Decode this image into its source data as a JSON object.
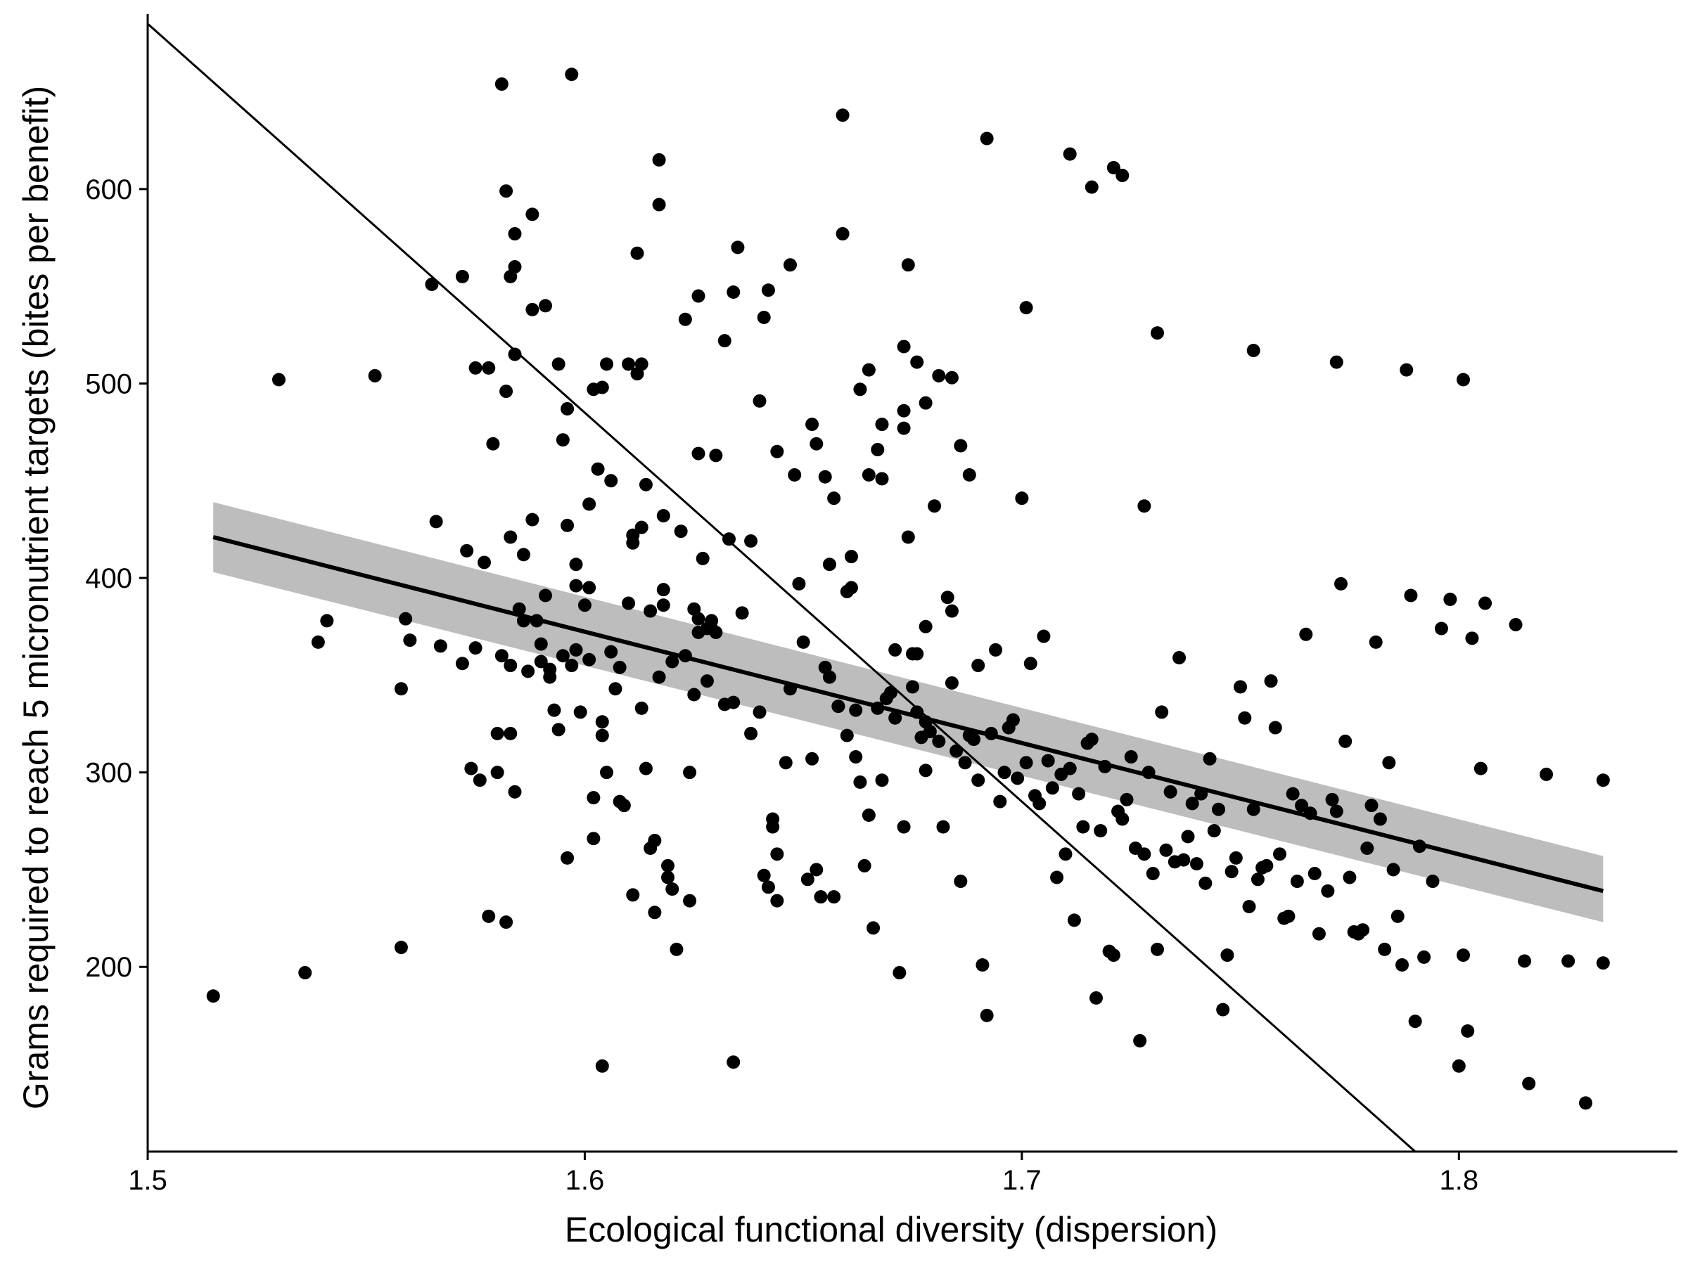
{
  "chart_data": {
    "type": "scatter",
    "title": "",
    "xlabel": "Ecological functional diversity (dispersion)",
    "ylabel": "Grams required to reach 5 micronutrient targets (bites per benefit)",
    "xlim": [
      1.5,
      1.85
    ],
    "ylim": [
      105,
      690
    ],
    "x_ticks": [
      1.5,
      1.6,
      1.7,
      1.8
    ],
    "y_ticks": [
      200,
      300,
      400,
      500,
      600
    ],
    "x_tick_labels": [
      "1.5",
      "1.6",
      "1.7",
      "1.8"
    ],
    "y_tick_labels": [
      "200",
      "300",
      "400",
      "500",
      "600"
    ],
    "grid": false,
    "legend": "none",
    "colors": {
      "points": "#000000",
      "fit_line": "#000000",
      "confidence_band": "#bdbdbd",
      "reference_line": "#000000",
      "axis": "#000000"
    },
    "regression": {
      "x": [
        1.515,
        1.833
      ],
      "y": [
        421,
        239
      ],
      "ci_lower": [
        403,
        223
      ],
      "ci_upper": [
        439,
        257
      ]
    },
    "reference_line": {
      "x": [
        1.5,
        1.79
      ],
      "y": [
        685,
        105
      ]
    },
    "points": [
      [
        1.515,
        185
      ],
      [
        1.53,
        502
      ],
      [
        1.536,
        197
      ],
      [
        1.539,
        367
      ],
      [
        1.541,
        378
      ],
      [
        1.552,
        504
      ],
      [
        1.558,
        343
      ],
      [
        1.558,
        210
      ],
      [
        1.559,
        379
      ],
      [
        1.56,
        368
      ],
      [
        1.565,
        551
      ],
      [
        1.566,
        429
      ],
      [
        1.567,
        365
      ],
      [
        1.572,
        356
      ],
      [
        1.572,
        555
      ],
      [
        1.573,
        414
      ],
      [
        1.574,
        302
      ],
      [
        1.575,
        364
      ],
      [
        1.575,
        508
      ],
      [
        1.576,
        296
      ],
      [
        1.577,
        408
      ],
      [
        1.578,
        226
      ],
      [
        1.578,
        508
      ],
      [
        1.579,
        469
      ],
      [
        1.58,
        300
      ],
      [
        1.58,
        320
      ],
      [
        1.581,
        654
      ],
      [
        1.581,
        360
      ],
      [
        1.582,
        599
      ],
      [
        1.582,
        223
      ],
      [
        1.582,
        496
      ],
      [
        1.583,
        355
      ],
      [
        1.583,
        555
      ],
      [
        1.583,
        421
      ],
      [
        1.583,
        320
      ],
      [
        1.584,
        290
      ],
      [
        1.584,
        560
      ],
      [
        1.584,
        515
      ],
      [
        1.584,
        577
      ],
      [
        1.585,
        384
      ],
      [
        1.586,
        378
      ],
      [
        1.586,
        412
      ],
      [
        1.587,
        352
      ],
      [
        1.588,
        587
      ],
      [
        1.588,
        430
      ],
      [
        1.588,
        538
      ],
      [
        1.589,
        378
      ],
      [
        1.59,
        366
      ],
      [
        1.59,
        357
      ],
      [
        1.591,
        540
      ],
      [
        1.591,
        391
      ],
      [
        1.592,
        353
      ],
      [
        1.592,
        349
      ],
      [
        1.593,
        332
      ],
      [
        1.594,
        510
      ],
      [
        1.594,
        322
      ],
      [
        1.595,
        471
      ],
      [
        1.595,
        360
      ],
      [
        1.596,
        427
      ],
      [
        1.596,
        256
      ],
      [
        1.597,
        659
      ],
      [
        1.597,
        355
      ],
      [
        1.598,
        396
      ],
      [
        1.598,
        407
      ],
      [
        1.598,
        363
      ],
      [
        1.599,
        331
      ],
      [
        1.6,
        386
      ],
      [
        1.601,
        438
      ],
      [
        1.601,
        395
      ],
      [
        1.601,
        358
      ],
      [
        1.602,
        266
      ],
      [
        1.602,
        287
      ],
      [
        1.602,
        497
      ],
      [
        1.603,
        456
      ],
      [
        1.604,
        326
      ],
      [
        1.604,
        149
      ],
      [
        1.604,
        319
      ],
      [
        1.605,
        510
      ],
      [
        1.605,
        300
      ],
      [
        1.606,
        362
      ],
      [
        1.607,
        343
      ],
      [
        1.608,
        354
      ],
      [
        1.608,
        285
      ],
      [
        1.609,
        283
      ],
      [
        1.61,
        510
      ],
      [
        1.61,
        387
      ],
      [
        1.611,
        422
      ],
      [
        1.611,
        418
      ],
      [
        1.611,
        237
      ],
      [
        1.612,
        567
      ],
      [
        1.613,
        426
      ],
      [
        1.613,
        333
      ],
      [
        1.613,
        510
      ],
      [
        1.614,
        302
      ],
      [
        1.615,
        261
      ],
      [
        1.615,
        383
      ],
      [
        1.616,
        228
      ],
      [
        1.616,
        265
      ],
      [
        1.617,
        349
      ],
      [
        1.618,
        394
      ],
      [
        1.618,
        432
      ],
      [
        1.618,
        386
      ],
      [
        1.619,
        246
      ],
      [
        1.619,
        252
      ],
      [
        1.62,
        240
      ],
      [
        1.62,
        357
      ],
      [
        1.621,
        209
      ],
      [
        1.622,
        424
      ],
      [
        1.623,
        360
      ],
      [
        1.624,
        300
      ],
      [
        1.624,
        234
      ],
      [
        1.625,
        340
      ],
      [
        1.625,
        384
      ],
      [
        1.626,
        372
      ],
      [
        1.626,
        379
      ],
      [
        1.627,
        410
      ],
      [
        1.628,
        347
      ],
      [
        1.628,
        374
      ],
      [
        1.629,
        374
      ],
      [
        1.629,
        378
      ],
      [
        1.63,
        372
      ],
      [
        1.632,
        335
      ],
      [
        1.634,
        336
      ],
      [
        1.634,
        151
      ],
      [
        1.636,
        382
      ],
      [
        1.638,
        419
      ],
      [
        1.638,
        320
      ],
      [
        1.64,
        331
      ],
      [
        1.641,
        247
      ],
      [
        1.642,
        241
      ],
      [
        1.643,
        276
      ],
      [
        1.643,
        272
      ],
      [
        1.644,
        234
      ],
      [
        1.644,
        258
      ],
      [
        1.646,
        305
      ],
      [
        1.647,
        343
      ],
      [
        1.649,
        397
      ],
      [
        1.65,
        367
      ],
      [
        1.651,
        245
      ],
      [
        1.652,
        307
      ],
      [
        1.653,
        250
      ],
      [
        1.654,
        236
      ],
      [
        1.655,
        354
      ],
      [
        1.656,
        349
      ],
      [
        1.656,
        407
      ],
      [
        1.657,
        236
      ],
      [
        1.658,
        334
      ],
      [
        1.658,
        334
      ],
      [
        1.659,
        577
      ],
      [
        1.66,
        319
      ],
      [
        1.661,
        411
      ],
      [
        1.661,
        395
      ],
      [
        1.662,
        332
      ],
      [
        1.662,
        308
      ],
      [
        1.663,
        295
      ],
      [
        1.664,
        252
      ],
      [
        1.665,
        453
      ],
      [
        1.665,
        278
      ],
      [
        1.666,
        220
      ],
      [
        1.667,
        333
      ],
      [
        1.668,
        296
      ],
      [
        1.668,
        451
      ],
      [
        1.669,
        338
      ],
      [
        1.67,
        341
      ],
      [
        1.671,
        328
      ],
      [
        1.671,
        363
      ],
      [
        1.672,
        197
      ],
      [
        1.673,
        519
      ],
      [
        1.673,
        272
      ],
      [
        1.674,
        421
      ],
      [
        1.675,
        344
      ],
      [
        1.675,
        361
      ],
      [
        1.676,
        331
      ],
      [
        1.676,
        361
      ],
      [
        1.677,
        318
      ],
      [
        1.678,
        326
      ],
      [
        1.678,
        375
      ],
      [
        1.678,
        301
      ],
      [
        1.679,
        321
      ],
      [
        1.68,
        437
      ],
      [
        1.681,
        316
      ],
      [
        1.682,
        272
      ],
      [
        1.683,
        390
      ],
      [
        1.684,
        383
      ],
      [
        1.684,
        346
      ],
      [
        1.685,
        311
      ],
      [
        1.686,
        244
      ],
      [
        1.687,
        305
      ],
      [
        1.688,
        319
      ],
      [
        1.689,
        317
      ],
      [
        1.69,
        355
      ],
      [
        1.69,
        296
      ],
      [
        1.691,
        201
      ],
      [
        1.692,
        175
      ],
      [
        1.693,
        320
      ],
      [
        1.694,
        363
      ],
      [
        1.695,
        285
      ],
      [
        1.696,
        300
      ],
      [
        1.697,
        323
      ],
      [
        1.698,
        327
      ],
      [
        1.699,
        297
      ],
      [
        1.7,
        441
      ],
      [
        1.701,
        305
      ],
      [
        1.702,
        356
      ],
      [
        1.703,
        288
      ],
      [
        1.704,
        284
      ],
      [
        1.705,
        370
      ],
      [
        1.706,
        306
      ],
      [
        1.707,
        292
      ],
      [
        1.708,
        246
      ],
      [
        1.709,
        299
      ],
      [
        1.71,
        258
      ],
      [
        1.711,
        302
      ],
      [
        1.712,
        224
      ],
      [
        1.713,
        289
      ],
      [
        1.714,
        272
      ],
      [
        1.715,
        315
      ],
      [
        1.716,
        317
      ],
      [
        1.717,
        184
      ],
      [
        1.718,
        270
      ],
      [
        1.719,
        303
      ],
      [
        1.72,
        208
      ],
      [
        1.721,
        206
      ],
      [
        1.722,
        280
      ],
      [
        1.723,
        276
      ],
      [
        1.724,
        286
      ],
      [
        1.725,
        308
      ],
      [
        1.726,
        261
      ],
      [
        1.727,
        162
      ],
      [
        1.728,
        258
      ],
      [
        1.729,
        300
      ],
      [
        1.73,
        248
      ],
      [
        1.731,
        209
      ],
      [
        1.732,
        331
      ],
      [
        1.733,
        260
      ],
      [
        1.734,
        290
      ],
      [
        1.735,
        254
      ],
      [
        1.736,
        359
      ],
      [
        1.737,
        255
      ],
      [
        1.738,
        267
      ],
      [
        1.739,
        284
      ],
      [
        1.74,
        253
      ],
      [
        1.741,
        289
      ],
      [
        1.742,
        243
      ],
      [
        1.743,
        307
      ],
      [
        1.744,
        270
      ],
      [
        1.745,
        281
      ],
      [
        1.746,
        178
      ],
      [
        1.747,
        206
      ],
      [
        1.748,
        249
      ],
      [
        1.749,
        256
      ],
      [
        1.75,
        344
      ],
      [
        1.751,
        328
      ],
      [
        1.752,
        231
      ],
      [
        1.753,
        281
      ],
      [
        1.754,
        245
      ],
      [
        1.755,
        251
      ],
      [
        1.756,
        252
      ],
      [
        1.757,
        347
      ],
      [
        1.758,
        323
      ],
      [
        1.759,
        258
      ],
      [
        1.76,
        225
      ],
      [
        1.761,
        226
      ],
      [
        1.762,
        289
      ],
      [
        1.763,
        244
      ],
      [
        1.764,
        283
      ],
      [
        1.765,
        371
      ],
      [
        1.766,
        279
      ],
      [
        1.767,
        248
      ],
      [
        1.768,
        217
      ],
      [
        1.77,
        239
      ],
      [
        1.771,
        286
      ],
      [
        1.772,
        280
      ],
      [
        1.773,
        397
      ],
      [
        1.774,
        316
      ],
      [
        1.775,
        246
      ],
      [
        1.776,
        218
      ],
      [
        1.777,
        217
      ],
      [
        1.778,
        219
      ],
      [
        1.779,
        261
      ],
      [
        1.78,
        283
      ],
      [
        1.781,
        367
      ],
      [
        1.782,
        276
      ],
      [
        1.783,
        209
      ],
      [
        1.784,
        305
      ],
      [
        1.785,
        250
      ],
      [
        1.786,
        226
      ],
      [
        1.787,
        201
      ],
      [
        1.788,
        507
      ],
      [
        1.789,
        391
      ],
      [
        1.79,
        172
      ],
      [
        1.791,
        262
      ],
      [
        1.792,
        205
      ],
      [
        1.794,
        244
      ],
      [
        1.796,
        374
      ],
      [
        1.798,
        389
      ],
      [
        1.8,
        149
      ],
      [
        1.801,
        206
      ],
      [
        1.802,
        167
      ],
      [
        1.803,
        369
      ],
      [
        1.805,
        302
      ],
      [
        1.806,
        387
      ],
      [
        1.813,
        376
      ],
      [
        1.815,
        203
      ],
      [
        1.816,
        140
      ],
      [
        1.82,
        299
      ],
      [
        1.825,
        203
      ],
      [
        1.829,
        130
      ],
      [
        1.833,
        296
      ],
      [
        1.833,
        202
      ],
      [
        1.801,
        502
      ],
      [
        1.772,
        511
      ],
      [
        1.753,
        517
      ],
      [
        1.731,
        526
      ],
      [
        1.728,
        437
      ],
      [
        1.721,
        611
      ],
      [
        1.723,
        607
      ],
      [
        1.711,
        618
      ],
      [
        1.716,
        601
      ],
      [
        1.701,
        539
      ],
      [
        1.692,
        626
      ],
      [
        1.659,
        638
      ],
      [
        1.617,
        615
      ],
      [
        1.617,
        592
      ],
      [
        1.596,
        487
      ],
      [
        1.604,
        498
      ],
      [
        1.674,
        561
      ],
      [
        1.655,
        452
      ],
      [
        1.641,
        534
      ],
      [
        1.642,
        548
      ],
      [
        1.647,
        561
      ],
      [
        1.634,
        547
      ],
      [
        1.626,
        545
      ],
      [
        1.635,
        570
      ],
      [
        1.632,
        522
      ],
      [
        1.623,
        533
      ],
      [
        1.652,
        479
      ],
      [
        1.663,
        497
      ],
      [
        1.668,
        479
      ],
      [
        1.673,
        486
      ],
      [
        1.681,
        504
      ],
      [
        1.676,
        511
      ],
      [
        1.678,
        490
      ],
      [
        1.684,
        503
      ],
      [
        1.686,
        468
      ],
      [
        1.665,
        507
      ],
      [
        1.673,
        477
      ],
      [
        1.667,
        466
      ],
      [
        1.688,
        453
      ],
      [
        1.644,
        465
      ],
      [
        1.64,
        491
      ],
      [
        1.626,
        464
      ],
      [
        1.63,
        463
      ],
      [
        1.614,
        448
      ],
      [
        1.633,
        420
      ],
      [
        1.648,
        453
      ],
      [
        1.657,
        441
      ],
      [
        1.66,
        393
      ],
      [
        1.653,
        469
      ],
      [
        1.612,
        505
      ],
      [
        1.606,
        450
      ]
    ]
  }
}
